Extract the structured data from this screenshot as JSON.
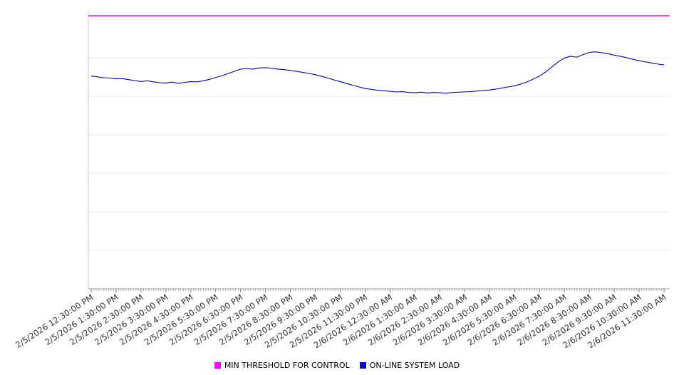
{
  "page": {
    "background": "#ffffff"
  },
  "legend": {
    "items": [
      {
        "label": "MIN THRESHOLD FOR CONTROL",
        "color": "#ff00ff"
      },
      {
        "label": "ON-LINE SYSTEM LOAD",
        "color": "#0000cc"
      }
    ]
  },
  "chart_data": {
    "type": "line",
    "title": "",
    "xlabel": "",
    "ylabel": "",
    "ylim": [
      0,
      100
    ],
    "y_axis_labels_visible": false,
    "x_tick_labels": [
      "2/5/2026 12:30:00 PM",
      "2/5/2026 1:30:00 PM",
      "2/5/2026 2:30:00 PM",
      "2/5/2026 3:30:00 PM",
      "2/5/2026 4:30:00 PM",
      "2/5/2026 5:30:00 PM",
      "2/5/2026 6:30:00 PM",
      "2/5/2026 7:30:00 PM",
      "2/5/2026 8:30:00 PM",
      "2/5/2026 9:30:00 PM",
      "2/5/2026 10:30:00 PM",
      "2/5/2026 11:30:00 PM",
      "2/6/2026 12:30:00 AM",
      "2/6/2026 1:30:00 AM",
      "2/6/2026 2:30:00 AM",
      "2/6/2026 3:30:00 AM",
      "2/6/2026 4:30:00 AM",
      "2/6/2026 5:30:00 AM",
      "2/6/2026 6:30:00 AM",
      "2/6/2026 7:30:00 AM",
      "2/6/2026 8:30:00 AM",
      "2/6/2026 9:30:00 AM",
      "2/6/2026 10:30:00 AM",
      "2/6/2026 11:30:00 AM"
    ],
    "series": [
      {
        "name": "MIN THRESHOLD FOR CONTROL",
        "color": "#ff00ff",
        "style": "constant-threshold",
        "value": 98.2
      },
      {
        "name": "ON-LINE SYSTEM LOAD",
        "color": "#0000cc",
        "points_per_interval": 4,
        "values": [
          76.5,
          76.2,
          75.9,
          75.8,
          75.5,
          75.6,
          75.2,
          74.9,
          74.5,
          74.8,
          74.4,
          74.1,
          74.0,
          74.3,
          73.9,
          74.2,
          74.5,
          74.4,
          74.8,
          75.3,
          76.0,
          76.6,
          77.4,
          78.2,
          79.0,
          79.2,
          79.0,
          79.4,
          79.5,
          79.3,
          79.0,
          78.8,
          78.5,
          78.2,
          77.8,
          77.4,
          77.0,
          76.4,
          75.8,
          75.1,
          74.5,
          73.8,
          73.2,
          72.6,
          72.0,
          71.7,
          71.4,
          71.2,
          71.0,
          70.8,
          70.9,
          70.6,
          70.5,
          70.7,
          70.4,
          70.6,
          70.5,
          70.3,
          70.6,
          70.7,
          70.8,
          70.9,
          71.1,
          71.3,
          71.5,
          71.8,
          72.2,
          72.6,
          73.0,
          73.6,
          74.4,
          75.4,
          76.5,
          78.0,
          79.8,
          81.6,
          83.0,
          83.6,
          83.3,
          84.2,
          85.0,
          85.2,
          84.9,
          84.5,
          84.0,
          83.6,
          83.1,
          82.5,
          82.0,
          81.6,
          81.2,
          80.8,
          80.5
        ]
      }
    ],
    "layout": {
      "grid": "horizontal-only",
      "gridline_color": "#eaeaea",
      "horizontal_gridline_count": 7,
      "minor_ticks_per_interval": 10,
      "x_label_rotation_deg": -33,
      "legend_position": "bottom-center"
    }
  }
}
